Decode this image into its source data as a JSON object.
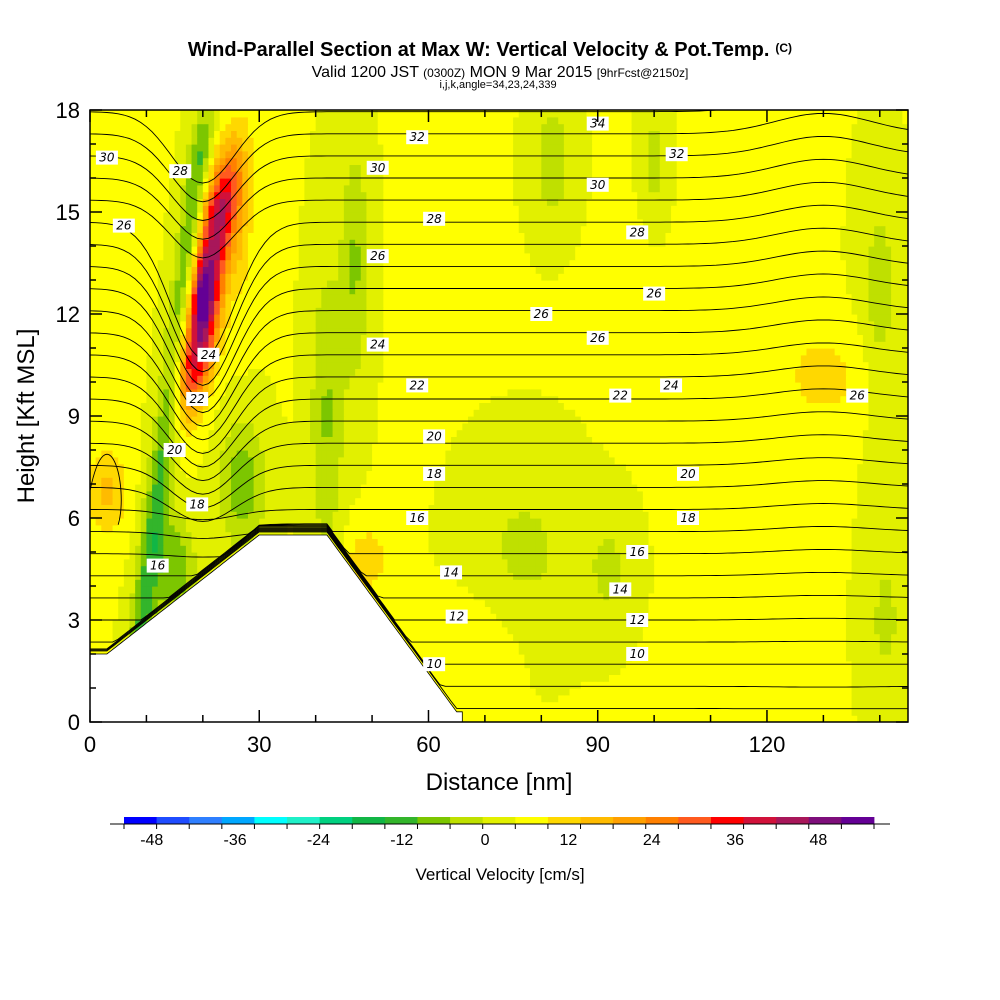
{
  "chart_data": {
    "type": "heatmap",
    "title": "Wind-Parallel Section at Max W: Vertical Velocity & Pot.Temp.",
    "title_mark": "(C)",
    "subtitle_parts": [
      "Valid 1200 JST",
      "(0300Z)",
      "MON 9 Mar 2015",
      "[9hrFcst@2150z]"
    ],
    "subtitle2": "i,j,k,angle=34,23,24,339",
    "xlabel": "Distance [nm]",
    "ylabel": "Height [Kft MSL]",
    "xlim": [
      0,
      145
    ],
    "ylim": [
      0,
      18
    ],
    "x_ticks": [
      "0",
      "30",
      "60",
      "90",
      "120"
    ],
    "y_ticks": [
      "0",
      "3",
      "6",
      "9",
      "12",
      "15",
      "18"
    ],
    "x_tick_values": [
      0,
      30,
      60,
      90,
      120
    ],
    "y_tick_values": [
      0,
      3,
      6,
      9,
      12,
      15,
      18
    ],
    "colorbar": {
      "label": "Vertical Velocity [cm/s]",
      "tick_labels": [
        "-48",
        "-36",
        "-24",
        "-12",
        "0",
        "12",
        "24",
        "36",
        "48"
      ],
      "tick_values": [
        -48,
        -36,
        -24,
        -12,
        0,
        12,
        24,
        36,
        48
      ],
      "range": [
        -52,
        56
      ],
      "colors": [
        "#0000ff",
        "#1f4cff",
        "#2f7fff",
        "#00a7ff",
        "#00ffff",
        "#1ff0c8",
        "#00d080",
        "#11b646",
        "#33b52b",
        "#7cc600",
        "#bfe000",
        "#e2f000",
        "#ffff00",
        "#ffd800",
        "#ffbb00",
        "#ffa000",
        "#ff8000",
        "#ff5a1f",
        "#ff0000",
        "#d1113a",
        "#a8175a",
        "#7e0e7b",
        "#640095"
      ]
    },
    "potential_temperature_labels": [
      {
        "text": "10",
        "x": 61,
        "y": 1.7
      },
      {
        "text": "10",
        "x": 97,
        "y": 2.0
      },
      {
        "text": "12",
        "x": 65,
        "y": 3.1
      },
      {
        "text": "12",
        "x": 97,
        "y": 3.0
      },
      {
        "text": "14",
        "x": 64,
        "y": 4.4
      },
      {
        "text": "14",
        "x": 94,
        "y": 3.9
      },
      {
        "text": "16",
        "x": 12,
        "y": 4.6
      },
      {
        "text": "16",
        "x": 58,
        "y": 6.0
      },
      {
        "text": "16",
        "x": 97,
        "y": 5.0
      },
      {
        "text": "18",
        "x": 19,
        "y": 6.4
      },
      {
        "text": "18",
        "x": 61,
        "y": 7.3
      },
      {
        "text": "18",
        "x": 106,
        "y": 6.0
      },
      {
        "text": "20",
        "x": 15,
        "y": 8.0
      },
      {
        "text": "20",
        "x": 61,
        "y": 8.4
      },
      {
        "text": "20",
        "x": 106,
        "y": 7.3
      },
      {
        "text": "22",
        "x": 19,
        "y": 9.5
      },
      {
        "text": "22",
        "x": 58,
        "y": 9.9
      },
      {
        "text": "22",
        "x": 94,
        "y": 9.6
      },
      {
        "text": "24",
        "x": 21,
        "y": 10.8
      },
      {
        "text": "24",
        "x": 51,
        "y": 11.1
      },
      {
        "text": "24",
        "x": 103,
        "y": 9.9
      },
      {
        "text": "26",
        "x": 6,
        "y": 14.6
      },
      {
        "text": "26",
        "x": 51,
        "y": 13.7
      },
      {
        "text": "26",
        "x": 80,
        "y": 12.0
      },
      {
        "text": "26",
        "x": 90,
        "y": 11.3
      },
      {
        "text": "26",
        "x": 100,
        "y": 12.6
      },
      {
        "text": "26",
        "x": 136,
        "y": 9.6
      },
      {
        "text": "28",
        "x": 16,
        "y": 16.2
      },
      {
        "text": "28",
        "x": 61,
        "y": 14.8
      },
      {
        "text": "28",
        "x": 97,
        "y": 14.4
      },
      {
        "text": "30",
        "x": 3,
        "y": 16.6
      },
      {
        "text": "30",
        "x": 51,
        "y": 16.3
      },
      {
        "text": "30",
        "x": 90,
        "y": 15.8
      },
      {
        "text": "32",
        "x": 58,
        "y": 17.2
      },
      {
        "text": "32",
        "x": 104,
        "y": 16.7
      },
      {
        "text": "34",
        "x": 90,
        "y": 17.6
      }
    ]
  }
}
